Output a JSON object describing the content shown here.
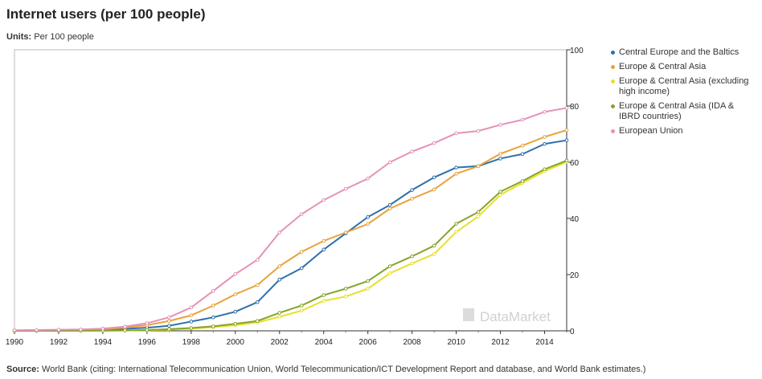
{
  "title": "Internet users (per 100 people)",
  "units_label": "Units:",
  "units_value": "Per 100 people",
  "source_label": "Source:",
  "source_text": "World Bank (citing: International Telecommunication Union, World Telecommunication/ICT Development Report and database, and World Bank estimates.)",
  "watermark": "DataMarket",
  "chart_data": {
    "type": "line",
    "title": "Internet users (per 100 people)",
    "xlabel": "",
    "ylabel": "",
    "x": [
      1990,
      1991,
      1992,
      1993,
      1994,
      1995,
      1996,
      1997,
      1998,
      1999,
      2000,
      2001,
      2002,
      2003,
      2004,
      2005,
      2006,
      2007,
      2008,
      2009,
      2010,
      2011,
      2012,
      2013,
      2014,
      2015
    ],
    "x_ticks": [
      "1990",
      "1992",
      "1994",
      "1996",
      "1998",
      "2000",
      "2002",
      "2004",
      "2006",
      "2008",
      "2010",
      "2012",
      "2014"
    ],
    "x_tick_values": [
      1990,
      1992,
      1994,
      1996,
      1998,
      2000,
      2002,
      2004,
      2006,
      2008,
      2010,
      2012,
      2014
    ],
    "xlim": [
      1990,
      2015
    ],
    "y_ticks": [
      "0",
      "20",
      "40",
      "60",
      "80",
      "100"
    ],
    "y_tick_values": [
      0,
      20,
      40,
      60,
      80,
      100
    ],
    "ylim": [
      0,
      100
    ],
    "grid": false,
    "legend_position": "right",
    "series": [
      {
        "name": "Central Europe and the Baltics",
        "color": "#2f6fa8",
        "values": [
          0,
          0.05,
          0.1,
          0.2,
          0.4,
          0.7,
          1.1,
          1.8,
          3.3,
          4.8,
          6.8,
          10.2,
          18.2,
          22.3,
          28.9,
          34.7,
          40.5,
          44.8,
          50.1,
          54.6,
          58.1,
          58.6,
          61.3,
          62.9,
          66.5,
          67.8
        ]
      },
      {
        "name": "Europe & Central Asia",
        "color": "#e8a33a",
        "values": [
          0.05,
          0.1,
          0.15,
          0.3,
          0.6,
          1.1,
          2.0,
          3.5,
          5.5,
          9.0,
          13.0,
          16.3,
          23.0,
          28.1,
          32.0,
          35.0,
          38.0,
          43.5,
          47.0,
          50.3,
          55.9,
          58.6,
          63.0,
          65.9,
          69.0,
          71.4
        ]
      },
      {
        "name": "Europe & Central Asia (excluding high income)",
        "color": "#e8e02a",
        "values": [
          0,
          0,
          0.01,
          0.02,
          0.05,
          0.1,
          0.2,
          0.4,
          0.8,
          1.3,
          2.0,
          3.0,
          5.0,
          7.2,
          10.7,
          12.2,
          15.0,
          20.5,
          24.0,
          27.3,
          35.2,
          40.7,
          48.4,
          52.6,
          56.8,
          60.1
        ]
      },
      {
        "name": "Europe & Central Asia (IDA & IBRD countries)",
        "color": "#86a52a",
        "values": [
          0,
          0,
          0.01,
          0.03,
          0.07,
          0.15,
          0.3,
          0.6,
          1.0,
          1.6,
          2.5,
          3.5,
          6.4,
          9.0,
          12.7,
          15.0,
          17.7,
          23.0,
          26.5,
          30.3,
          38.1,
          42.3,
          49.5,
          53.3,
          57.5,
          60.6
        ]
      },
      {
        "name": "European Union",
        "color": "#e591b9",
        "values": [
          0.2,
          0.3,
          0.4,
          0.5,
          0.8,
          1.5,
          2.7,
          4.8,
          8.3,
          14.2,
          20.2,
          25.3,
          35.0,
          41.5,
          46.5,
          50.5,
          54.2,
          60.0,
          63.8,
          66.8,
          70.3,
          71.1,
          73.3,
          75.1,
          77.9,
          79.3
        ]
      }
    ]
  }
}
